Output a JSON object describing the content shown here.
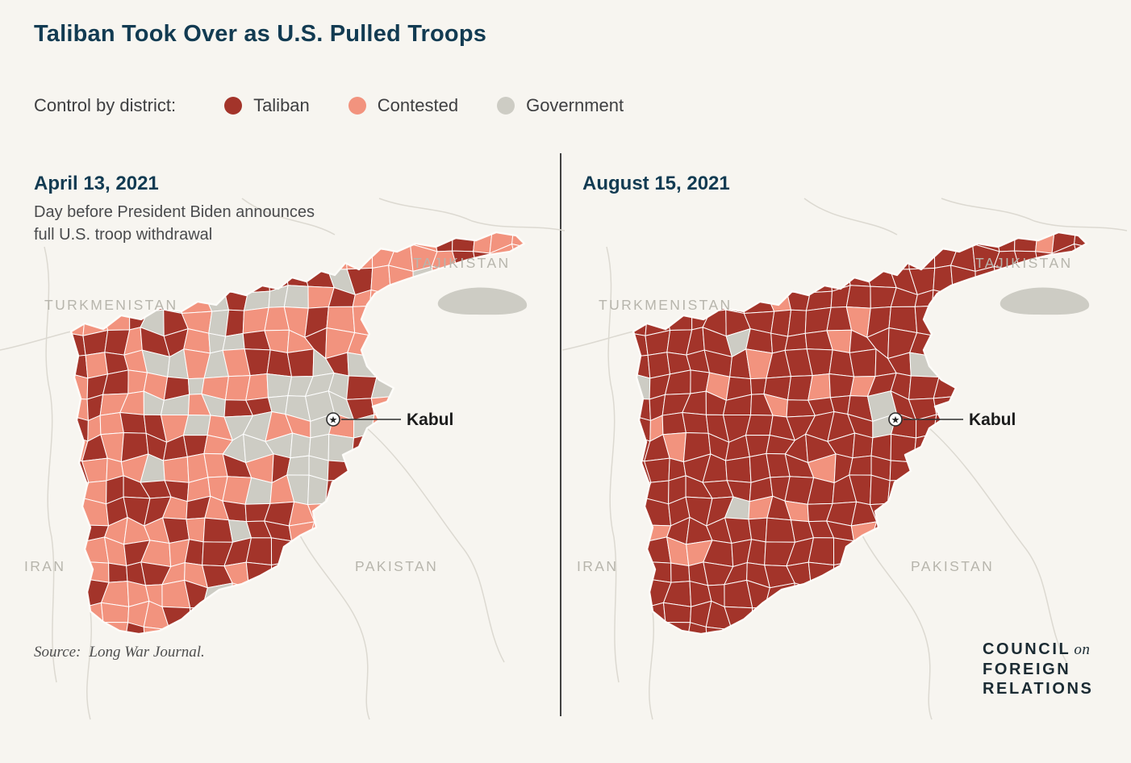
{
  "page": {
    "title": "Taliban Took Over as U.S. Pulled Troops"
  },
  "colors": {
    "taliban": "#A3342A",
    "contested": "#F2937E",
    "government": "#CDCCC4",
    "background": "#F7F5F0",
    "heading_navy": "#123B52"
  },
  "legend": {
    "label": "Control by district:",
    "items": [
      {
        "key": "taliban",
        "label": "Taliban",
        "color": "#A3342A"
      },
      {
        "key": "contested",
        "label": "Contested",
        "color": "#F2937E"
      },
      {
        "key": "government",
        "label": "Government",
        "color": "#CDCCC4"
      }
    ]
  },
  "maps": [
    {
      "date": "April 13, 2021",
      "subtitle_lines": [
        "Day before President Biden announces",
        "full U.S. troop withdrawal"
      ],
      "city_label": "Kabul",
      "country_labels": {
        "nw": "TURKMENISTAN",
        "ne": "TAJIKISTAN",
        "sw": "IRAN",
        "se": "PAKISTAN"
      },
      "distribution": {
        "taliban": 0.3,
        "contested": 0.52,
        "government": 0.18
      }
    },
    {
      "date": "August 15, 2021",
      "subtitle_lines": [],
      "city_label": "Kabul",
      "country_labels": {
        "nw": "TURKMENISTAN",
        "ne": "TAJIKISTAN",
        "sw": "IRAN",
        "se": "PAKISTAN"
      },
      "distribution": {
        "taliban": 0.87,
        "contested": 0.09,
        "government": 0.04
      }
    }
  ],
  "source": {
    "label": "Source:",
    "text": "Long War Journal."
  },
  "logo": {
    "word1": "COUNCIL",
    "conj": "on",
    "word2": "FOREIGN",
    "word3": "RELATIONS"
  }
}
